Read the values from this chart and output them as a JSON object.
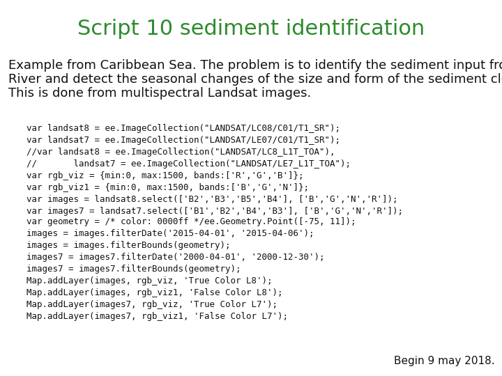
{
  "title": "Script 10 sediment identification",
  "title_color": "#2e8b2e",
  "title_fontsize": 22,
  "background_color": "#ffffff",
  "intro_lines": [
    "Example from Caribbean Sea. The problem is to identify the sediment input from the",
    "River and detect the seasonal changes of the size and form of the sediment cloud.",
    "This is done from multispectral Landsat images."
  ],
  "intro_fontsize": 13,
  "code_block1": [
    "var landsat8 = ee.ImageCollection(\"LANDSAT/LC08/C01/T1_SR\");",
    "var landsat7 = ee.ImageCollection(\"LANDSAT/LE07/C01/T1_SR\");",
    "//var landsat8 = ee.ImageCollection(\"LANDSAT/LC8_L1T_TOA\"),",
    "//       landsat7 = ee.ImageCollection(\"LANDSAT/LE7_L1T_TOA\");",
    "var rgb_viz = {min:0, max:1500, bands:['R','G','B']};",
    "var rgb_viz1 = {min:0, max:1500, bands:['B','G','N']};",
    "var images = landsat8.select(['B2','B3','B5','B4'], ['B','G','N','R']);",
    "var images7 = landsat7.select(['B1','B2','B4','B3'], ['B','G','N','R']);"
  ],
  "code_block2": [
    "var geometry = /* color: 0000ff */ee.Geometry.Point([-75, 11]);",
    "images = images.filterDate('2015-04-01', '2015-04-06');",
    "images = images.filterBounds(geometry);",
    "images7 = images7.filterDate('2000-04-01', '2000-12-30');",
    "images7 = images7.filterBounds(geometry);",
    "Map.addLayer(images, rgb_viz, 'True Color L8');",
    "Map.addLayer(images, rgb_viz1, 'False Color L8');",
    "Map.addLayer(images7, rgb_viz, 'True Color L7');",
    "Map.addLayer(images7, rgb_viz1, 'False Color L7');"
  ],
  "code_fontsize": 9,
  "footer_text": "Begin 9 may 2018.",
  "footer_fontsize": 11
}
